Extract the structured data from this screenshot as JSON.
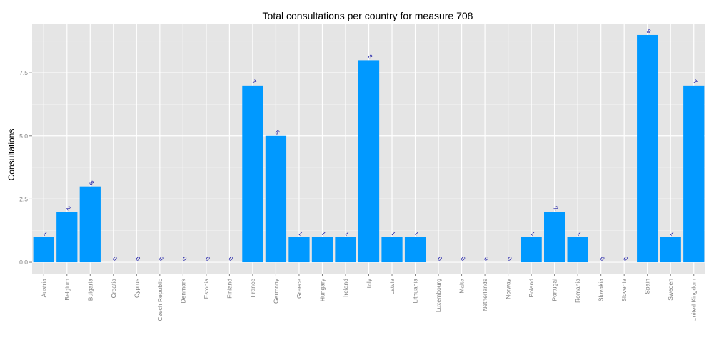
{
  "chart_data": {
    "type": "bar",
    "title": "Total consultations per country for measure 708",
    "xlabel": "",
    "ylabel": "Consultations",
    "categories": [
      "Austria",
      "Belgium",
      "Bulgaria",
      "Croatia",
      "Cyprus",
      "Czech Republic",
      "Denmark",
      "Estonia",
      "Finland",
      "France",
      "Germany",
      "Greece",
      "Hungary",
      "Ireland",
      "Italy",
      "Latvia",
      "Lithuania",
      "Luxembourg",
      "Malta",
      "Netherlands",
      "Norway",
      "Poland",
      "Portugal",
      "Romania",
      "Slovakia",
      "Slovenia",
      "Spain",
      "Sweden",
      "United Kingdom"
    ],
    "values": [
      1,
      2,
      3,
      0,
      0,
      0,
      0,
      0,
      0,
      7,
      5,
      1,
      1,
      1,
      8,
      1,
      1,
      0,
      0,
      0,
      0,
      1,
      2,
      1,
      0,
      0,
      9,
      1,
      7
    ],
    "yticks": [
      0,
      2.5,
      5,
      7.5
    ],
    "ytick_labels": [
      "0.0",
      "2.5",
      "5.0",
      "7.5"
    ],
    "ylim": [
      -0.45,
      9.45
    ],
    "grid": true,
    "bar_color": "#0099ff",
    "panel_color": "#e5e5e5",
    "label_color": "#1a1aa6"
  }
}
